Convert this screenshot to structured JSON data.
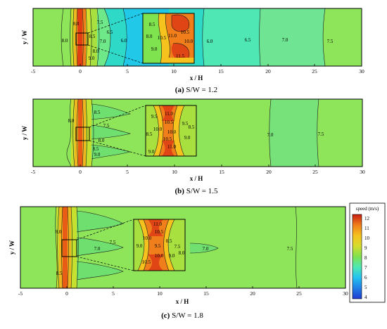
{
  "colors": {
    "scale": [
      "#1f3bd1",
      "#1f7fe6",
      "#22c2f0",
      "#3fe0d8",
      "#4fe8b4",
      "#5fe58a",
      "#7fe24f",
      "#a8e040",
      "#d6dd2e",
      "#f5c21e",
      "#f07e1a",
      "#e04515",
      "#c81e12"
    ],
    "frame": "#000000"
  },
  "chart_data": [
    {
      "type": "contour",
      "caption": {
        "label": "(a)",
        "text": " S/W = 1.2"
      },
      "xlabel": "x / H",
      "ylabel": "y / W",
      "xlim": [
        -5,
        30
      ],
      "xticks": [
        "-5",
        "0",
        "5",
        "10",
        "15",
        "20",
        "25",
        "30"
      ],
      "contour_labels": [
        "8.0",
        "8.0",
        "7.5",
        "8.5",
        "7.0",
        "6.5",
        "6.0",
        "8.0",
        "9.0",
        "6.0",
        "6.5",
        "7.0",
        "7.5"
      ],
      "inset_labels": [
        "8.5",
        "8.0",
        "9.0",
        "11.0",
        "10.5",
        "10.5",
        "10.0",
        "11.5"
      ]
    },
    {
      "type": "contour",
      "caption": {
        "label": "(b)",
        "text": " S/W = 1.5"
      },
      "xlabel": "x / H",
      "ylabel": "y / W",
      "xlim": [
        -5,
        30
      ],
      "xticks": [
        "-5",
        "0",
        "5",
        "10",
        "15",
        "20",
        "25",
        "30"
      ],
      "contour_labels": [
        "8.5",
        "8.0",
        "7.5",
        "8.0",
        "8.5",
        "9.0",
        "7.0",
        "7.5"
      ],
      "inset_labels": [
        "11.0",
        "9.5",
        "10.5",
        "9.5",
        "10.0",
        "8.5",
        "10.0",
        "8.5",
        "10.5",
        "9.0",
        "11.0",
        "9.0"
      ]
    },
    {
      "type": "contour",
      "caption": {
        "label": "(c)",
        "text": " S/W = 1.8"
      },
      "xlabel": "x / H",
      "ylabel": "y / W",
      "xlim": [
        -5,
        30
      ],
      "xticks": [
        "-5",
        "0",
        "5",
        "10",
        "15",
        "20",
        "25",
        "30"
      ],
      "contour_labels": [
        "8.0",
        "7.5",
        "7.0",
        "8.5",
        "7.0",
        "7.5"
      ],
      "inset_labels": [
        "11.0",
        "10.5",
        "10.0",
        "8.5",
        "9.0",
        "9.5",
        "7.5",
        "10.0",
        "9.0",
        "8.0",
        "10.5"
      ],
      "colorbar": {
        "title": "speed (m/s)",
        "ticks": [
          "12",
          "11",
          "10",
          "9",
          "8",
          "7",
          "6",
          "5",
          "4"
        ],
        "range": [
          4,
          12
        ]
      }
    }
  ]
}
